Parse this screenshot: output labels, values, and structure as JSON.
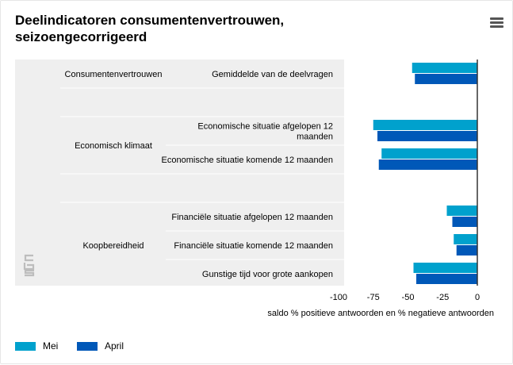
{
  "title_line1": "Deelindicatoren consumentenvertrouwen,",
  "title_line2": "seizoengecorrigeerd",
  "colors": {
    "mei": "#00a1cd",
    "april": "#0058b8"
  },
  "legend": [
    {
      "name": "Mei",
      "color": "#00a1cd"
    },
    {
      "name": "April",
      "color": "#0058b8"
    }
  ],
  "chart_data": {
    "type": "bar",
    "orientation": "horizontal",
    "title": "Deelindicatoren consumentenvertrouwen, seizoengecorrigeerd",
    "xlabel": "saldo % positieve antwoorden en % negatieve antwoorden",
    "xlim": [
      -100,
      0
    ],
    "xticks": [
      -100,
      -75,
      -50,
      -25,
      0
    ],
    "groups": [
      {
        "name": "Consumentenvertrouwen",
        "categories": [
          "Gemiddelde van de deelvragen"
        ]
      },
      {
        "name": "Economisch klimaat",
        "categories": [
          "Economische situatie afgelopen 12 maanden",
          "Economische situatie komende 12 maanden"
        ]
      },
      {
        "name": "Koopbereidheid",
        "categories": [
          "Financiële situatie afgelopen 12 maanden",
          "Financiële situatie komende 12 maanden",
          "Gunstige tijd voor grote aankopen"
        ]
      }
    ],
    "categories": [
      "Gemiddelde van de deelvragen",
      "Economische situatie afgelopen 12 maanden",
      "Economische situatie komende 12 maanden",
      "Financiële situatie afgelopen 12 maanden",
      "Financiële situatie komende 12 maanden",
      "Gunstige tijd voor grote aankopen"
    ],
    "series": [
      {
        "name": "Mei",
        "values": [
          -47,
          -75,
          -69,
          -22,
          -17,
          -46
        ]
      },
      {
        "name": "April",
        "values": [
          -45,
          -72,
          -71,
          -18,
          -15,
          -44
        ]
      }
    ],
    "legend_position": "bottom-left",
    "grid": false
  }
}
